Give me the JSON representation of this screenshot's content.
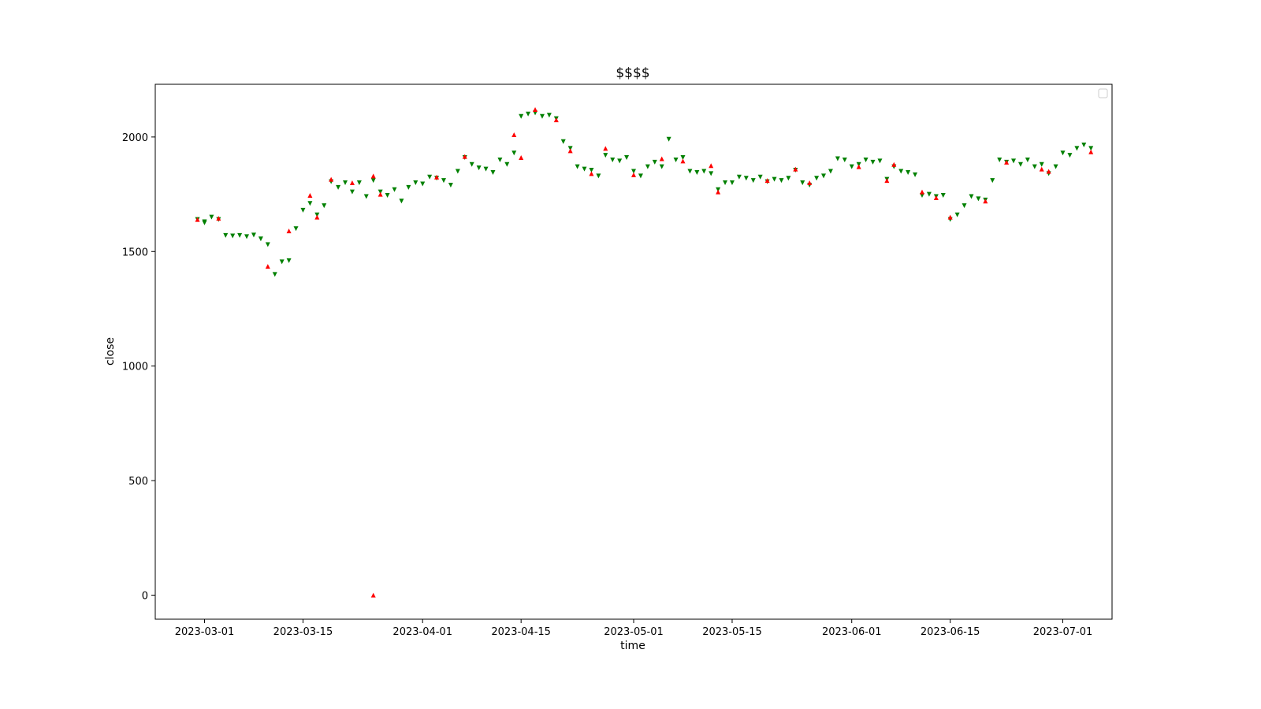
{
  "chart_data": {
    "type": "scatter",
    "title": "$$$$",
    "xlabel": "time",
    "ylabel": "close",
    "xlim": [
      "2023-02-22",
      "2023-07-08"
    ],
    "ylim": [
      -105,
      2230
    ],
    "x_ticks": [
      {
        "value": "2023-03-01",
        "label": "2023-03-01"
      },
      {
        "value": "2023-03-15",
        "label": "2023-03-15"
      },
      {
        "value": "2023-04-01",
        "label": "2023-04-01"
      },
      {
        "value": "2023-04-15",
        "label": "2023-04-15"
      },
      {
        "value": "2023-05-01",
        "label": "2023-05-01"
      },
      {
        "value": "2023-05-15",
        "label": "2023-05-15"
      },
      {
        "value": "2023-06-01",
        "label": "2023-06-01"
      },
      {
        "value": "2023-06-15",
        "label": "2023-06-15"
      },
      {
        "value": "2023-07-01",
        "label": "2023-07-01"
      }
    ],
    "y_ticks": [
      {
        "value": 0,
        "label": "0"
      },
      {
        "value": 500,
        "label": "500"
      },
      {
        "value": 1000,
        "label": "1000"
      },
      {
        "value": 1500,
        "label": "1500"
      },
      {
        "value": 2000,
        "label": "2000"
      }
    ],
    "grid": false,
    "legend": {
      "placement": "top-right",
      "entries": []
    },
    "marker_colors": {
      "up": "#008000",
      "down": "#ff0000"
    },
    "series": [
      {
        "color": "#008000",
        "marker": "triangle-down",
        "points": [
          [
            "2023-02-28",
            1640
          ],
          [
            "2023-02-29",
            1630
          ],
          [
            "2023-03-01",
            1625
          ],
          [
            "2023-03-02",
            1650
          ],
          [
            "2023-03-03",
            1640
          ],
          [
            "2023-03-04",
            1570
          ],
          [
            "2023-03-05",
            1568
          ],
          [
            "2023-03-06",
            1570
          ],
          [
            "2023-03-07",
            1565
          ],
          [
            "2023-03-08",
            1572
          ],
          [
            "2023-03-09",
            1555
          ],
          [
            "2023-03-10",
            1530
          ],
          [
            "2023-03-11",
            1400
          ],
          [
            "2023-03-12",
            1455
          ],
          [
            "2023-03-13",
            1460
          ],
          [
            "2023-03-14",
            1600
          ],
          [
            "2023-03-15",
            1680
          ],
          [
            "2023-03-16",
            1710
          ],
          [
            "2023-03-17",
            1660
          ],
          [
            "2023-03-18",
            1700
          ],
          [
            "2023-03-19",
            1805
          ],
          [
            "2023-03-20",
            1780
          ],
          [
            "2023-03-21",
            1800
          ],
          [
            "2023-03-22",
            1760
          ],
          [
            "2023-03-23",
            1800
          ],
          [
            "2023-03-24",
            1740
          ],
          [
            "2023-03-25",
            1810
          ],
          [
            "2023-03-26",
            1760
          ],
          [
            "2023-03-27",
            1745
          ],
          [
            "2023-03-28",
            1770
          ],
          [
            "2023-03-29",
            1720
          ],
          [
            "2023-03-30",
            1780
          ],
          [
            "2023-03-31",
            1800
          ],
          [
            "2023-04-01",
            1795
          ],
          [
            "2023-04-02",
            1825
          ],
          [
            "2023-04-03",
            1820
          ],
          [
            "2023-04-04",
            1810
          ],
          [
            "2023-04-05",
            1790
          ],
          [
            "2023-04-06",
            1850
          ],
          [
            "2023-04-07",
            1910
          ],
          [
            "2023-04-08",
            1880
          ],
          [
            "2023-04-09",
            1865
          ],
          [
            "2023-04-10",
            1860
          ],
          [
            "2023-04-11",
            1845
          ],
          [
            "2023-04-12",
            1900
          ],
          [
            "2023-04-13",
            1880
          ],
          [
            "2023-04-14",
            1930
          ],
          [
            "2023-04-15",
            2090
          ],
          [
            "2023-04-16",
            2100
          ],
          [
            "2023-04-17",
            2105
          ],
          [
            "2023-04-18",
            2090
          ],
          [
            "2023-04-19",
            2095
          ],
          [
            "2023-04-20",
            2080
          ],
          [
            "2023-04-21",
            1980
          ],
          [
            "2023-04-22",
            1950
          ],
          [
            "2023-04-23",
            1870
          ],
          [
            "2023-04-24",
            1860
          ],
          [
            "2023-04-25",
            1855
          ],
          [
            "2023-04-26",
            1830
          ],
          [
            "2023-04-27",
            1920
          ],
          [
            "2023-04-28",
            1900
          ],
          [
            "2023-04-29",
            1895
          ],
          [
            "2023-04-30",
            1910
          ],
          [
            "2023-05-01",
            1850
          ],
          [
            "2023-05-02",
            1830
          ],
          [
            "2023-05-03",
            1870
          ],
          [
            "2023-05-04",
            1890
          ],
          [
            "2023-05-05",
            1870
          ],
          [
            "2023-05-06",
            1990
          ],
          [
            "2023-05-07",
            1900
          ],
          [
            "2023-05-08",
            1910
          ],
          [
            "2023-05-09",
            1850
          ],
          [
            "2023-05-10",
            1845
          ],
          [
            "2023-05-11",
            1850
          ],
          [
            "2023-05-12",
            1840
          ],
          [
            "2023-05-13",
            1770
          ],
          [
            "2023-05-14",
            1800
          ],
          [
            "2023-05-15",
            1800
          ],
          [
            "2023-05-16",
            1825
          ],
          [
            "2023-05-17",
            1820
          ],
          [
            "2023-05-18",
            1810
          ],
          [
            "2023-05-19",
            1825
          ],
          [
            "2023-05-20",
            1805
          ],
          [
            "2023-05-21",
            1815
          ],
          [
            "2023-05-22",
            1810
          ],
          [
            "2023-05-23",
            1820
          ],
          [
            "2023-05-24",
            1855
          ],
          [
            "2023-05-25",
            1800
          ],
          [
            "2023-05-26",
            1790
          ],
          [
            "2023-05-27",
            1820
          ],
          [
            "2023-05-28",
            1830
          ],
          [
            "2023-05-29",
            1850
          ],
          [
            "2023-05-30",
            1905
          ],
          [
            "2023-05-31",
            1900
          ],
          [
            "2023-06-01",
            1870
          ],
          [
            "2023-06-02",
            1880
          ],
          [
            "2023-06-03",
            1900
          ],
          [
            "2023-06-04",
            1890
          ],
          [
            "2023-06-05",
            1895
          ],
          [
            "2023-06-06",
            1815
          ],
          [
            "2023-06-07",
            1870
          ],
          [
            "2023-06-08",
            1850
          ],
          [
            "2023-06-09",
            1845
          ],
          [
            "2023-06-10",
            1835
          ],
          [
            "2023-06-11",
            1745
          ],
          [
            "2023-06-12",
            1750
          ],
          [
            "2023-06-13",
            1740
          ],
          [
            "2023-06-14",
            1745
          ],
          [
            "2023-06-15",
            1640
          ],
          [
            "2023-06-16",
            1660
          ],
          [
            "2023-06-17",
            1700
          ],
          [
            "2023-06-18",
            1740
          ],
          [
            "2023-06-19",
            1730
          ],
          [
            "2023-06-20",
            1725
          ],
          [
            "2023-06-21",
            1810
          ],
          [
            "2023-06-22",
            1900
          ],
          [
            "2023-06-23",
            1890
          ],
          [
            "2023-06-24",
            1895
          ],
          [
            "2023-06-25",
            1880
          ],
          [
            "2023-06-26",
            1900
          ],
          [
            "2023-06-27",
            1870
          ],
          [
            "2023-06-28",
            1880
          ],
          [
            "2023-06-29",
            1840
          ],
          [
            "2023-06-30",
            1870
          ],
          [
            "2023-07-01",
            1930
          ],
          [
            "2023-07-02",
            1920
          ],
          [
            "2023-07-03",
            1950
          ],
          [
            "2023-07-04",
            1965
          ],
          [
            "2023-07-05",
            1950
          ]
        ]
      },
      {
        "color": "#ff0000",
        "marker": "triangle-up",
        "points": [
          [
            "2023-02-28",
            1640
          ],
          [
            "2023-03-03",
            1645
          ],
          [
            "2023-03-10",
            1435
          ],
          [
            "2023-03-13",
            1590
          ],
          [
            "2023-03-16",
            1745
          ],
          [
            "2023-03-17",
            1650
          ],
          [
            "2023-03-19",
            1815
          ],
          [
            "2023-03-22",
            1800
          ],
          [
            "2023-03-25",
            0
          ],
          [
            "2023-03-25",
            1830
          ],
          [
            "2023-03-26",
            1750
          ],
          [
            "2023-04-03",
            1825
          ],
          [
            "2023-04-07",
            1915
          ],
          [
            "2023-04-14",
            2010
          ],
          [
            "2023-04-15",
            1910
          ],
          [
            "2023-04-17",
            2120
          ],
          [
            "2023-04-20",
            2075
          ],
          [
            "2023-04-22",
            1940
          ],
          [
            "2023-04-25",
            1840
          ],
          [
            "2023-04-27",
            1950
          ],
          [
            "2023-05-01",
            1835
          ],
          [
            "2023-05-05",
            1905
          ],
          [
            "2023-05-08",
            1895
          ],
          [
            "2023-05-12",
            1875
          ],
          [
            "2023-05-13",
            1760
          ],
          [
            "2023-05-20",
            1810
          ],
          [
            "2023-05-24",
            1860
          ],
          [
            "2023-05-26",
            1800
          ],
          [
            "2023-06-02",
            1870
          ],
          [
            "2023-06-06",
            1810
          ],
          [
            "2023-06-07",
            1880
          ],
          [
            "2023-06-11",
            1760
          ],
          [
            "2023-06-13",
            1735
          ],
          [
            "2023-06-15",
            1650
          ],
          [
            "2023-06-20",
            1720
          ],
          [
            "2023-06-23",
            1890
          ],
          [
            "2023-06-28",
            1860
          ],
          [
            "2023-06-29",
            1850
          ],
          [
            "2023-07-05",
            1935
          ]
        ]
      }
    ]
  }
}
